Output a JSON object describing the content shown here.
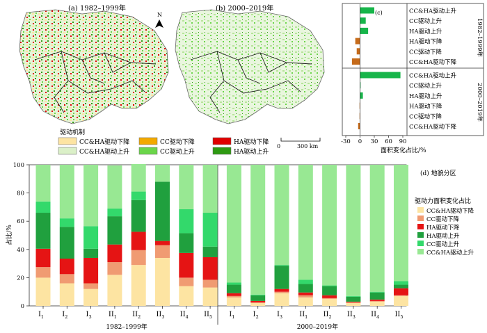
{
  "maps": {
    "panel_a_title": "(a) 1982–1999年",
    "panel_b_title": "(b) 2000–2019年",
    "north": "N",
    "scale": {
      "zero": "0",
      "label": "300 km"
    },
    "legend_title": "驱动机制",
    "legend": [
      {
        "label": "CC&HA驱动下降",
        "color": "#fde4a2"
      },
      {
        "label": "CC驱动下降",
        "color": "#f2a900"
      },
      {
        "label": "HA驱动下降",
        "color": "#e00000"
      },
      {
        "label": "CC&HA驱动上升",
        "color": "#dbf0c8"
      },
      {
        "label": "CC驱动上升",
        "color": "#6bd64a"
      },
      {
        "label": "HA驱动上升",
        "color": "#2e9a12"
      }
    ]
  },
  "chart_data": [
    {
      "panel": "(c)",
      "type": "bar",
      "orientation": "horizontal",
      "categories": [
        "CC&HA驱动上升",
        "CC驱动上升",
        "HA驱动上升",
        "HA驱动下降",
        "CC驱动下降",
        "CC&HA驱动下降"
      ],
      "groups": [
        {
          "name": "1982–1999年",
          "values": [
            30,
            12,
            17,
            -10,
            -7,
            -17
          ]
        },
        {
          "name": "2000–2019年",
          "values": [
            85,
            0.5,
            6,
            -1,
            -1,
            -4
          ]
        }
      ],
      "xlabel": "面积变化占比/%",
      "xticks": [
        -30,
        0,
        30,
        60,
        90
      ],
      "xlim": [
        -30,
        90
      ],
      "positive_color": "#17b54a",
      "negative_color": "#c66b1a"
    },
    {
      "panel": "(d) 地貌分区",
      "type": "bar",
      "stacked": true,
      "legend_title": "驱动力面积变化占比",
      "ylabel": "占比/%",
      "ylim": [
        0,
        100
      ],
      "yticks": [
        0,
        20,
        40,
        60,
        80,
        100
      ],
      "groups": [
        {
          "name": "1982–1999年",
          "categories": [
            {
              "main": "I",
              "sub": "1"
            },
            {
              "main": "I",
              "sub": "2"
            },
            {
              "main": "I",
              "sub": "3"
            },
            {
              "main": "II",
              "sub": "1"
            },
            {
              "main": "II",
              "sub": "2"
            },
            {
              "main": "II",
              "sub": "3"
            },
            {
              "main": "II",
              "sub": "4"
            },
            {
              "main": "II",
              "sub": "5"
            }
          ]
        },
        {
          "name": "2000–2019年",
          "categories": [
            {
              "main": "I",
              "sub": "1"
            },
            {
              "main": "I",
              "sub": "2"
            },
            {
              "main": "I",
              "sub": "3"
            },
            {
              "main": "II",
              "sub": "1"
            },
            {
              "main": "II",
              "sub": "2"
            },
            {
              "main": "II",
              "sub": "3"
            },
            {
              "main": "II",
              "sub": "4"
            },
            {
              "main": "II",
              "sub": "5"
            }
          ]
        }
      ],
      "series": [
        {
          "name": "CC&HA驱动下降",
          "color": "#fde4a2",
          "values": [
            20,
            16,
            12,
            22,
            29,
            34,
            14,
            13,
            6,
            2,
            9,
            6,
            5,
            2,
            3,
            7
          ]
        },
        {
          "name": "CC驱动下降",
          "color": "#f09b72",
          "values": [
            7.5,
            6.5,
            4,
            9,
            10.5,
            9,
            6,
            5.5,
            1,
            0.5,
            1,
            1.5,
            0.5,
            0.5,
            0.5,
            0.5
          ]
        },
        {
          "name": "HA驱动下降",
          "color": "#e51414",
          "values": [
            13,
            11,
            18,
            12.5,
            13,
            3,
            17.5,
            16,
            2,
            1,
            2,
            2,
            2,
            0.5,
            1,
            5
          ]
        },
        {
          "name": "HA驱动上升",
          "color": "#20a03e",
          "values": [
            25.5,
            22.5,
            6.5,
            20,
            22.5,
            42,
            14,
            7.5,
            6,
            4,
            16.5,
            6,
            6.5,
            3.5,
            5,
            2.5
          ]
        },
        {
          "name": "CC驱动上升",
          "color": "#33d96b",
          "values": [
            8,
            6,
            16,
            5.5,
            6,
            0,
            17,
            24,
            1.5,
            0.5,
            0.5,
            3,
            0.5,
            0.5,
            0.5,
            2.5
          ]
        },
        {
          "name": "CC&HA驱动上升",
          "color": "#98e893",
          "values": [
            26,
            38,
            43.5,
            30.5,
            19.5,
            12,
            31.5,
            34,
            83.5,
            92,
            71,
            81.5,
            85.5,
            93,
            90,
            82.5
          ]
        }
      ]
    }
  ]
}
